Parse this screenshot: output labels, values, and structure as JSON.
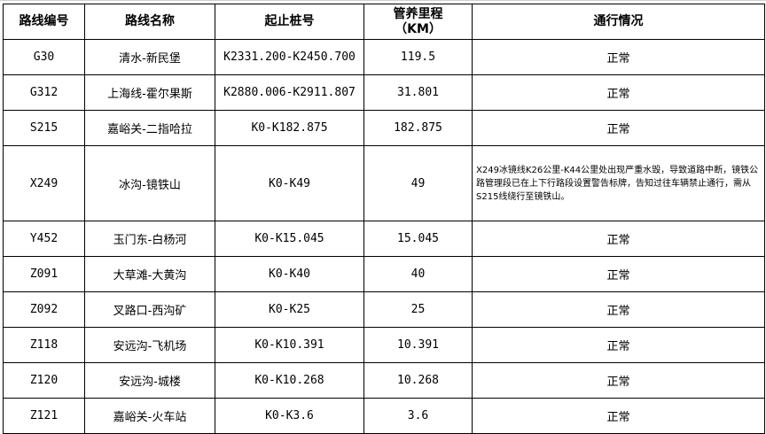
{
  "headers": [
    "路线编号",
    "路线名称",
    "起止桩号",
    "管养里程",
    "（KM）",
    "通行情况"
  ],
  "rows": [
    {
      "code": "G30",
      "name": "清水-新民堡",
      "stake": "K2331.200-K2450.700",
      "km": "119.5",
      "status": "正常"
    },
    {
      "code": "G312",
      "name": "上海线-霍尔果斯",
      "stake": "K2880.006-K2911.807",
      "km": "31.801",
      "status": "正常"
    },
    {
      "code": "S215",
      "name": "嘉峪关-二指哈拉",
      "stake": "K0-K182.875",
      "km": "182.875",
      "status": "正常"
    },
    {
      "code": "X249",
      "name": "冰沟-镜铁山",
      "stake": "K0-K49",
      "km": "49",
      "status": "X249冰镜线K26公里-K44公里处出现严重水毁，导致道路中断，镜铁公路管理段已在上下行路段设置警告标牌，告知过往车辆禁止通行，需从S215线绕行至镜铁山。"
    },
    {
      "code": "Y452",
      "name": "玉门东-白杨河",
      "stake": "K0-K15.045",
      "km": "15.045",
      "status": "正常"
    },
    {
      "code": "Z091",
      "name": "大草滩-大黄沟",
      "stake": "K0-K40",
      "km": "40",
      "status": "正常"
    },
    {
      "code": "Z092",
      "name": "叉路口-西沟矿",
      "stake": "K0-K25",
      "km": "25",
      "status": "正常"
    },
    {
      "code": "Z118",
      "name": "安远沟-飞机场",
      "stake": "K0-K10.391",
      "km": "10.391",
      "status": "正常"
    },
    {
      "code": "Z120",
      "name": "安远沟-城楼",
      "stake": "K0-K10.268",
      "km": "10.268",
      "status": "正常"
    },
    {
      "code": "Z121",
      "name": "嘉峪关-火车站",
      "stake": "K0-K3.6",
      "km": "3.6",
      "status": "正常"
    }
  ]
}
